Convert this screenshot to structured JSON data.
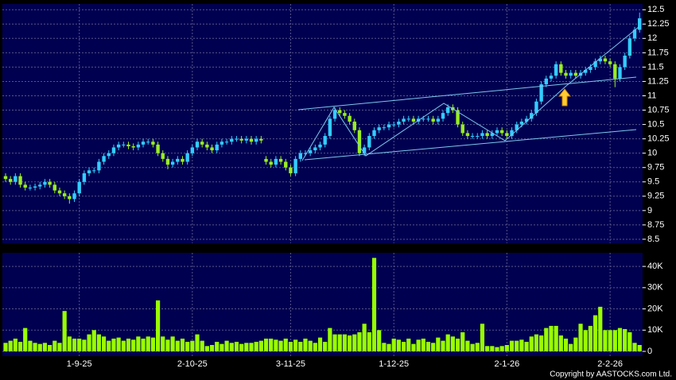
{
  "chart_data": [
    {
      "type": "candlestick",
      "up_color": "#33ccff",
      "down_color": "#99ee22",
      "ylim": [
        8.43,
        12.6
      ],
      "yticks": [
        8.5,
        8.75,
        9,
        9.25,
        9.5,
        9.75,
        10,
        10.25,
        10.5,
        10.75,
        11,
        11.25,
        11.5,
        11.75,
        12,
        12.25,
        12.5
      ],
      "grid": true,
      "open": [
        9.6,
        9.55,
        9.5,
        9.6,
        9.45,
        9.4,
        9.4,
        9.42,
        9.45,
        9.5,
        9.45,
        9.35,
        9.3,
        9.25,
        9.2,
        9.3,
        9.5,
        9.65,
        9.7,
        9.7,
        9.85,
        9.95,
        10.0,
        10.1,
        10.15,
        10.15,
        10.12,
        10.1,
        10.15,
        10.2,
        10.2,
        10.15,
        10.0,
        9.9,
        9.8,
        9.85,
        9.9,
        9.85,
        10.0,
        10.1,
        10.2,
        10.15,
        10.1,
        10.05,
        10.15,
        10.2,
        10.2,
        10.25,
        10.25,
        10.22,
        10.25,
        10.2,
        10.25,
        9.9,
        9.85,
        9.8,
        9.9,
        9.85,
        9.75,
        9.65,
        9.9,
        10.0,
        10.0,
        10.05,
        10.1,
        10.15,
        10.3,
        10.6,
        10.75,
        10.7,
        10.65,
        10.55,
        10.4,
        10.0,
        10.1,
        10.3,
        10.4,
        10.45,
        10.45,
        10.5,
        10.5,
        10.55,
        10.6,
        10.6,
        10.55,
        10.6,
        10.6,
        10.6,
        10.55,
        10.6,
        10.7,
        10.8,
        10.75,
        10.5,
        10.35,
        10.3,
        10.3,
        10.3,
        10.35,
        10.3,
        10.35,
        10.4,
        10.35,
        10.3,
        10.4,
        10.5,
        10.55,
        10.6,
        10.7,
        10.9,
        11.2,
        11.3,
        11.35,
        11.55,
        11.4,
        11.35,
        11.4,
        11.35,
        11.4,
        11.45,
        11.5,
        11.6,
        11.65,
        11.6,
        11.55,
        11.3,
        11.5,
        11.7,
        12.0,
        12.15
      ],
      "high": [
        9.65,
        9.6,
        9.65,
        9.65,
        9.5,
        9.45,
        9.47,
        9.5,
        9.55,
        9.55,
        9.5,
        9.4,
        9.35,
        9.3,
        9.35,
        9.55,
        9.7,
        9.75,
        9.75,
        9.9,
        10.0,
        10.05,
        10.15,
        10.2,
        10.2,
        10.2,
        10.17,
        10.2,
        10.25,
        10.25,
        10.25,
        10.2,
        10.05,
        9.95,
        9.9,
        9.95,
        9.95,
        10.05,
        10.15,
        10.25,
        10.25,
        10.2,
        10.15,
        10.2,
        10.25,
        10.25,
        10.3,
        10.3,
        10.3,
        10.3,
        10.3,
        10.3,
        10.3,
        9.95,
        9.9,
        9.95,
        9.95,
        9.9,
        9.8,
        9.95,
        10.05,
        10.05,
        10.1,
        10.15,
        10.2,
        10.35,
        10.65,
        10.8,
        10.8,
        10.75,
        10.7,
        10.6,
        10.45,
        10.15,
        10.35,
        10.45,
        10.5,
        10.5,
        10.55,
        10.55,
        10.6,
        10.65,
        10.65,
        10.65,
        10.65,
        10.65,
        10.65,
        10.65,
        10.65,
        10.75,
        10.85,
        10.85,
        10.8,
        10.55,
        10.4,
        10.35,
        10.35,
        10.4,
        10.4,
        10.4,
        10.45,
        10.45,
        10.4,
        10.45,
        10.55,
        10.6,
        10.65,
        10.75,
        10.95,
        11.25,
        11.35,
        11.4,
        11.6,
        11.6,
        11.45,
        11.45,
        11.45,
        11.45,
        11.5,
        11.55,
        11.65,
        11.7,
        11.7,
        11.65,
        11.6,
        11.55,
        11.75,
        12.05,
        12.2,
        12.45
      ],
      "low": [
        9.5,
        9.45,
        9.45,
        9.4,
        9.35,
        9.35,
        9.35,
        9.37,
        9.4,
        9.4,
        9.3,
        9.25,
        9.2,
        9.12,
        9.15,
        9.25,
        9.45,
        9.6,
        9.65,
        9.65,
        9.8,
        9.9,
        9.95,
        10.05,
        10.1,
        10.07,
        10.05,
        10.05,
        10.1,
        10.15,
        10.1,
        9.95,
        9.85,
        9.72,
        9.75,
        9.8,
        9.8,
        9.8,
        9.95,
        10.05,
        10.1,
        10.05,
        10.0,
        10.0,
        10.1,
        10.15,
        10.15,
        10.2,
        10.17,
        10.17,
        10.15,
        10.15,
        10.17,
        9.8,
        9.75,
        9.75,
        9.8,
        9.7,
        9.6,
        9.6,
        9.85,
        9.95,
        9.95,
        10.0,
        10.05,
        10.1,
        10.25,
        10.55,
        10.65,
        10.6,
        10.5,
        10.35,
        9.95,
        9.95,
        10.05,
        10.25,
        10.35,
        10.4,
        10.4,
        10.45,
        10.45,
        10.5,
        10.55,
        10.5,
        10.5,
        10.55,
        10.55,
        10.5,
        10.5,
        10.55,
        10.65,
        10.7,
        10.45,
        10.3,
        10.25,
        10.25,
        10.25,
        10.25,
        10.25,
        10.25,
        10.3,
        10.3,
        10.25,
        10.25,
        10.35,
        10.45,
        10.5,
        10.55,
        10.65,
        10.85,
        11.15,
        11.25,
        11.3,
        11.35,
        11.3,
        11.3,
        11.3,
        11.3,
        11.35,
        11.4,
        11.45,
        11.55,
        11.55,
        11.5,
        11.15,
        11.25,
        11.45,
        11.65,
        11.95,
        12.1
      ],
      "close": [
        9.55,
        9.5,
        9.6,
        9.45,
        9.4,
        9.4,
        9.42,
        9.45,
        9.5,
        9.45,
        9.35,
        9.3,
        9.25,
        9.2,
        9.3,
        9.5,
        9.65,
        9.7,
        9.7,
        9.85,
        9.95,
        10.0,
        10.1,
        10.15,
        10.15,
        10.12,
        10.1,
        10.15,
        10.2,
        10.2,
        10.15,
        10.0,
        9.9,
        9.8,
        9.85,
        9.9,
        9.85,
        10.0,
        10.1,
        10.2,
        10.15,
        10.1,
        10.05,
        10.15,
        10.2,
        10.2,
        10.25,
        10.25,
        10.22,
        10.25,
        10.2,
        10.25,
        10.22,
        9.85,
        9.8,
        9.9,
        9.85,
        9.75,
        9.65,
        9.9,
        10.0,
        10.0,
        10.05,
        10.1,
        10.15,
        10.3,
        10.6,
        10.75,
        10.7,
        10.65,
        10.55,
        10.4,
        10.0,
        10.1,
        10.3,
        10.4,
        10.45,
        10.45,
        10.5,
        10.5,
        10.55,
        10.6,
        10.6,
        10.55,
        10.6,
        10.6,
        10.6,
        10.55,
        10.6,
        10.7,
        10.8,
        10.75,
        10.5,
        10.35,
        10.3,
        10.3,
        10.3,
        10.35,
        10.3,
        10.35,
        10.4,
        10.35,
        10.3,
        10.4,
        10.5,
        10.55,
        10.6,
        10.7,
        10.9,
        11.2,
        11.3,
        11.35,
        11.55,
        11.4,
        11.35,
        11.4,
        11.35,
        11.4,
        11.45,
        11.5,
        11.6,
        11.65,
        11.6,
        11.55,
        11.3,
        11.5,
        11.7,
        12.0,
        12.15,
        12.35
      ]
    },
    {
      "type": "bar",
      "color": "#99ff00",
      "ylim": [
        0,
        46400
      ],
      "yticks": [
        0,
        {
          "value": 10000,
          "label": "10K"
        },
        {
          "value": 20000,
          "label": "20K"
        },
        {
          "value": 30000,
          "label": "30K"
        },
        {
          "value": 40000,
          "label": "40K"
        }
      ],
      "grid": true,
      "categories": [
        null,
        null,
        null,
        null,
        null,
        null,
        null,
        null,
        null,
        null,
        null,
        null,
        null,
        null,
        null,
        "1-9-25",
        null,
        null,
        null,
        null,
        null,
        null,
        null,
        null,
        null,
        null,
        null,
        null,
        null,
        null,
        null,
        null,
        null,
        null,
        null,
        null,
        null,
        null,
        "2-10-25",
        null,
        null,
        null,
        null,
        null,
        null,
        null,
        null,
        null,
        null,
        null,
        null,
        null,
        null,
        null,
        null,
        null,
        null,
        null,
        "3-11-25",
        null,
        null,
        null,
        null,
        null,
        null,
        null,
        null,
        null,
        null,
        null,
        null,
        null,
        null,
        null,
        null,
        null,
        null,
        null,
        null,
        "1-12-25",
        null,
        null,
        null,
        null,
        null,
        null,
        null,
        null,
        null,
        null,
        null,
        null,
        null,
        null,
        null,
        null,
        null,
        null,
        null,
        null,
        null,
        null,
        "2-1-26",
        null,
        null,
        null,
        null,
        null,
        null,
        null,
        null,
        null,
        null,
        null,
        null,
        null,
        null,
        null,
        null,
        null,
        null,
        null,
        null,
        "2-2-26",
        null,
        null,
        null,
        null,
        null,
        null
      ],
      "values": [
        4000,
        5000,
        6000,
        4500,
        11000,
        5000,
        4000,
        3500,
        4000,
        3000,
        5000,
        4000,
        19000,
        7000,
        6000,
        6000,
        5500,
        8000,
        10000,
        8000,
        7000,
        5000,
        6000,
        6500,
        5000,
        6000,
        5500,
        7000,
        6000,
        7000,
        6500,
        24000,
        7000,
        5500,
        7000,
        5000,
        6000,
        4500,
        5000,
        8000,
        5000,
        2500,
        3000,
        4500,
        3500,
        5000,
        4000,
        4500,
        3500,
        4000,
        4000,
        4500,
        5000,
        6000,
        6000,
        5500,
        5000,
        6000,
        4500,
        5500,
        4500,
        6000,
        5000,
        4000,
        6500,
        4500,
        11000,
        8000,
        8000,
        8000,
        7500,
        8000,
        9000,
        13000,
        9000,
        44000,
        10000,
        4000,
        3500,
        6000,
        5500,
        4500,
        6000,
        3500,
        5500,
        6000,
        4500,
        4000,
        6500,
        5000,
        8000,
        7000,
        6000,
        9000,
        5000,
        3500,
        4000,
        13000,
        2500,
        2500,
        2000,
        2500,
        3000,
        5000,
        5000,
        5500,
        4500,
        7000,
        8000,
        7500,
        11000,
        12000,
        12000,
        7500,
        6000,
        3500,
        6500,
        13000,
        10000,
        12000,
        17000,
        21000,
        10000,
        10000,
        10000,
        11000,
        10500,
        9000,
        4000,
        3000
      ]
    }
  ],
  "copyright": "Copyright by AASTOCKS.com Ltd."
}
